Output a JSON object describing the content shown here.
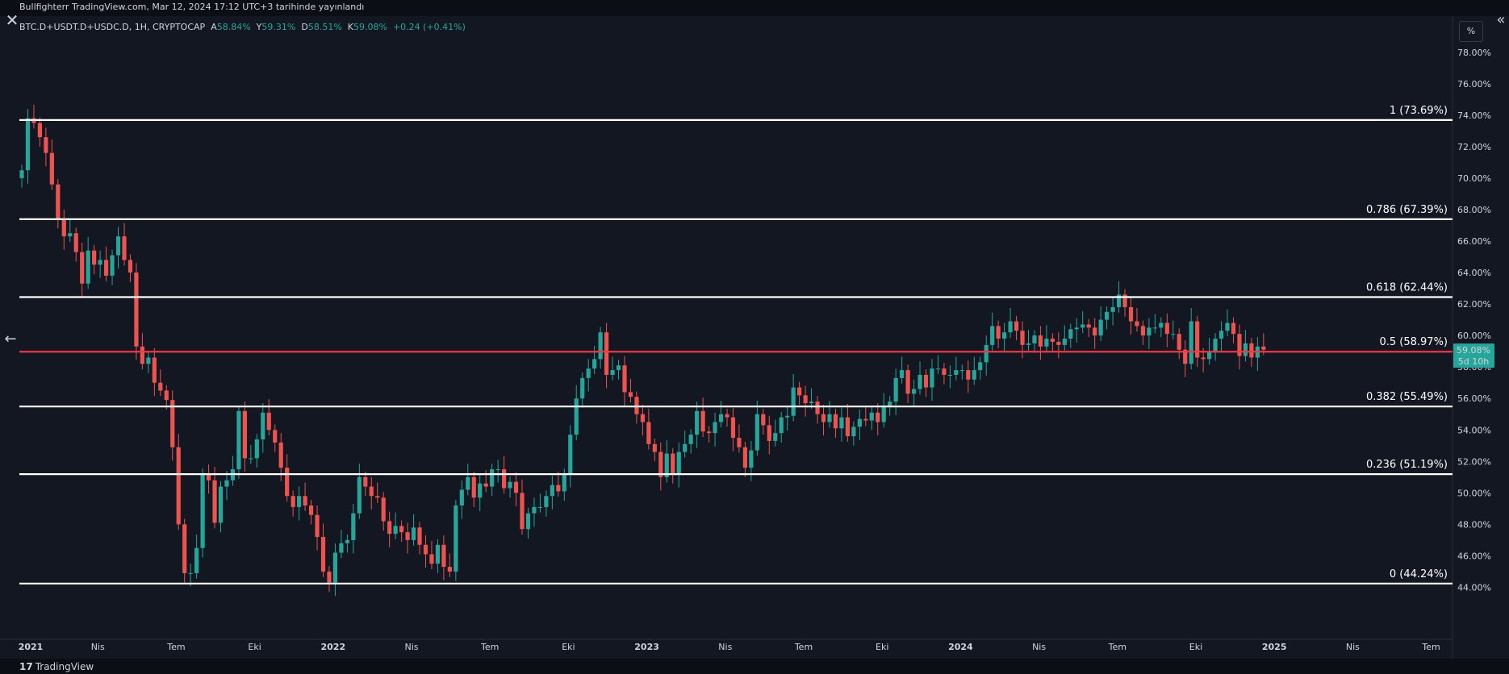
{
  "header": {
    "published_text": "Bullfighterr TradingView.com, Mar 12, 2024 17:12 UTC+3 tarihinde yayınlandı"
  },
  "legend": {
    "symbol": "BTC.D+USDT.D+USDC.D, 1H, CRYPTOCAP",
    "o_label": "A",
    "o_value": "58.84%",
    "h_label": "Y",
    "h_value": "59.31%",
    "l_label": "D",
    "l_value": "58.51%",
    "c_label": "K",
    "c_value": "59.08%",
    "change": "+0.24 (+0.41%)"
  },
  "toolbar": {
    "percent_label": "%",
    "close_icon": "close-icon",
    "collapse_icon": "double-chevron-icon",
    "back_icon": "arrow-left-icon"
  },
  "footer": {
    "logo_text": "TradingView",
    "logo_icon": "tradingview-logo-icon"
  },
  "colors": {
    "background": "#131722",
    "up": "#26a69a",
    "down": "#ef5350",
    "fib_line": "#ffffff",
    "fib_mid": "#f23645"
  },
  "chart_data": {
    "type": "candlestick",
    "y_axis": {
      "min": 43.0,
      "max": 78.5,
      "ticks": [
        "78.00%",
        "76.00%",
        "74.00%",
        "72.00%",
        "70.00%",
        "68.00%",
        "66.00%",
        "64.00%",
        "62.00%",
        "60.00%",
        "58.00%",
        "56.00%",
        "54.00%",
        "52.00%",
        "50.00%",
        "48.00%",
        "46.00%",
        "44.00%"
      ],
      "tick_values": [
        78,
        76,
        74,
        72,
        70,
        68,
        66,
        64,
        62,
        60,
        58,
        56,
        54,
        52,
        50,
        48,
        46,
        44
      ]
    },
    "x_axis": {
      "labels": [
        "2021",
        "Nis",
        "Tem",
        "Eki",
        "2022",
        "Nis",
        "Tem",
        "Eki",
        "2023",
        "Nis",
        "Tem",
        "Eki",
        "2024",
        "Nis",
        "Tem",
        "Eki",
        "2025",
        "Nis",
        "Tem"
      ],
      "months": [
        0,
        3,
        6,
        9,
        12,
        15,
        18,
        21,
        24,
        27,
        30,
        33,
        36,
        39,
        42,
        45,
        48,
        51,
        54
      ],
      "bold": [
        "2021",
        "2022",
        "2023",
        "2024",
        "2025"
      ]
    },
    "current_price": {
      "value": 59.08,
      "label": "59.08%",
      "countdown": "5d 10h"
    },
    "fib_levels": [
      {
        "value": 73.69,
        "label": "1 (73.69%)",
        "highlight": false
      },
      {
        "value": 67.39,
        "label": "0.786 (67.39%)",
        "highlight": false
      },
      {
        "value": 62.44,
        "label": "0.618 (62.44%)",
        "highlight": false
      },
      {
        "value": 58.97,
        "label": "0.5 (58.97%)",
        "highlight": true
      },
      {
        "value": 55.49,
        "label": "0.382 (55.49%)",
        "highlight": false
      },
      {
        "value": 51.19,
        "label": "0.236 (51.19%)",
        "highlight": false
      },
      {
        "value": 44.24,
        "label": "0 (44.24%)",
        "highlight": false
      }
    ],
    "candles_close": [
      70.5,
      73.8,
      73.5,
      72.6,
      71.6,
      69.6,
      67.4,
      66.3,
      66.5,
      65.3,
      63.3,
      65.4,
      64.5,
      64.8,
      63.8,
      65.1,
      66.3,
      64.8,
      64.0,
      59.3,
      58.2,
      58.6,
      57.0,
      56.5,
      55.9,
      52.9,
      48.0,
      44.9,
      44.9,
      46.5,
      51.2,
      50.8,
      48.1,
      50.4,
      50.8,
      51.5,
      55.2,
      52.2,
      52.2,
      53.4,
      55.1,
      54.0,
      53.2,
      51.6,
      49.8,
      49.1,
      49.8,
      49.2,
      48.6,
      47.2,
      45.0,
      44.3,
      46.2,
      46.8,
      47.0,
      48.7,
      51.0,
      50.4,
      49.8,
      49.7,
      48.2,
      47.4,
      47.9,
      47.5,
      47.0,
      47.8,
      46.7,
      46.1,
      45.5,
      46.7,
      45.3,
      45.0,
      49.2,
      50.2,
      51.0,
      49.7,
      50.6,
      50.4,
      51.5,
      51.5,
      50.3,
      50.7,
      50.0,
      47.7,
      48.7,
      49.1,
      49.1,
      49.8,
      50.5,
      50.1,
      51.2,
      53.7,
      56.0,
      57.3,
      57.9,
      58.5,
      60.2,
      57.5,
      57.8,
      58.1,
      56.4,
      56.1,
      55.0,
      54.5,
      53.1,
      52.6,
      51.0,
      52.5,
      51.2,
      52.6,
      53.1,
      53.7,
      55.2,
      53.9,
      53.8,
      54.5,
      55.0,
      54.8,
      53.5,
      52.9,
      51.6,
      52.7,
      55.0,
      54.3,
      53.3,
      53.8,
      54.8,
      54.9,
      56.7,
      56.2,
      55.7,
      55.8,
      55.0,
      54.5,
      55.0,
      54.1,
      54.8,
      53.6,
      54.2,
      54.7,
      54.6,
      55.1,
      54.5,
      55.5,
      55.8,
      57.3,
      57.8,
      56.3,
      56.6,
      57.5,
      56.7,
      57.9,
      57.9,
      57.5,
      57.5,
      57.8,
      57.8,
      57.2,
      57.8,
      58.3,
      59.4,
      60.6,
      59.8,
      60.2,
      60.9,
      60.3,
      59.4,
      59.5,
      60.0,
      59.3,
      59.8,
      59.6,
      59.4,
      59.8,
      60.4,
      60.5,
      60.7,
      60.5,
      60.0,
      61.0,
      61.5,
      61.8,
      62.6,
      61.8,
      60.9,
      60.6,
      60.0,
      60.5,
      60.5,
      60.8,
      60.1,
      60.1,
      59.1,
      58.2,
      60.9,
      58.6,
      58.5,
      59.0,
      59.8,
      60.3,
      60.8,
      60.1,
      58.7,
      59.5,
      58.6,
      59.3,
      59.1
    ],
    "candles_note": "Each candle represents one week; open equals prior close."
  }
}
